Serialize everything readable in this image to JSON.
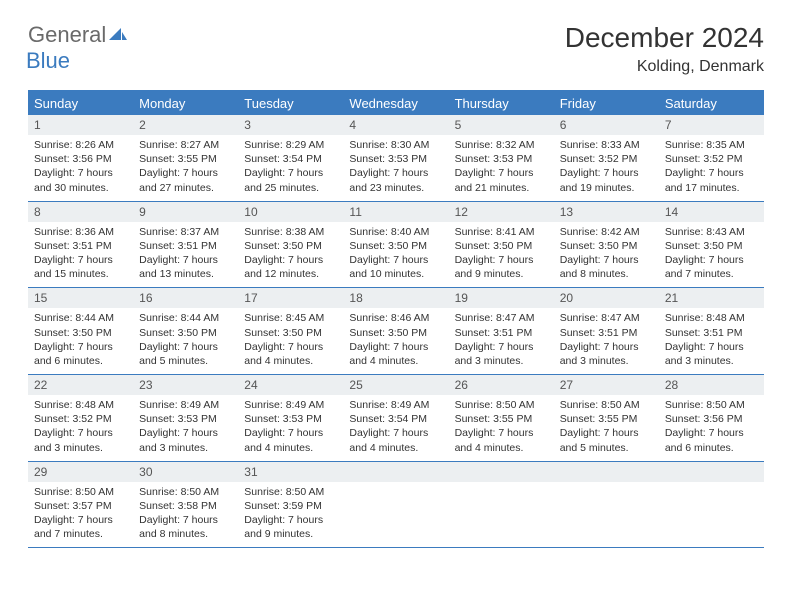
{
  "logo": {
    "text1": "General",
    "text2": "Blue"
  },
  "title": "December 2024",
  "subtitle": "Kolding, Denmark",
  "colors": {
    "accent": "#3b7bbf",
    "header_bg": "#3b7bbf",
    "daynum_bg": "#eceff1",
    "text": "#333333",
    "logo_gray": "#6a6a6a"
  },
  "day_names": [
    "Sunday",
    "Monday",
    "Tuesday",
    "Wednesday",
    "Thursday",
    "Friday",
    "Saturday"
  ],
  "weeks": [
    [
      {
        "n": "1",
        "sunrise": "Sunrise: 8:26 AM",
        "sunset": "Sunset: 3:56 PM",
        "daylight": "Daylight: 7 hours and 30 minutes."
      },
      {
        "n": "2",
        "sunrise": "Sunrise: 8:27 AM",
        "sunset": "Sunset: 3:55 PM",
        "daylight": "Daylight: 7 hours and 27 minutes."
      },
      {
        "n": "3",
        "sunrise": "Sunrise: 8:29 AM",
        "sunset": "Sunset: 3:54 PM",
        "daylight": "Daylight: 7 hours and 25 minutes."
      },
      {
        "n": "4",
        "sunrise": "Sunrise: 8:30 AM",
        "sunset": "Sunset: 3:53 PM",
        "daylight": "Daylight: 7 hours and 23 minutes."
      },
      {
        "n": "5",
        "sunrise": "Sunrise: 8:32 AM",
        "sunset": "Sunset: 3:53 PM",
        "daylight": "Daylight: 7 hours and 21 minutes."
      },
      {
        "n": "6",
        "sunrise": "Sunrise: 8:33 AM",
        "sunset": "Sunset: 3:52 PM",
        "daylight": "Daylight: 7 hours and 19 minutes."
      },
      {
        "n": "7",
        "sunrise": "Sunrise: 8:35 AM",
        "sunset": "Sunset: 3:52 PM",
        "daylight": "Daylight: 7 hours and 17 minutes."
      }
    ],
    [
      {
        "n": "8",
        "sunrise": "Sunrise: 8:36 AM",
        "sunset": "Sunset: 3:51 PM",
        "daylight": "Daylight: 7 hours and 15 minutes."
      },
      {
        "n": "9",
        "sunrise": "Sunrise: 8:37 AM",
        "sunset": "Sunset: 3:51 PM",
        "daylight": "Daylight: 7 hours and 13 minutes."
      },
      {
        "n": "10",
        "sunrise": "Sunrise: 8:38 AM",
        "sunset": "Sunset: 3:50 PM",
        "daylight": "Daylight: 7 hours and 12 minutes."
      },
      {
        "n": "11",
        "sunrise": "Sunrise: 8:40 AM",
        "sunset": "Sunset: 3:50 PM",
        "daylight": "Daylight: 7 hours and 10 minutes."
      },
      {
        "n": "12",
        "sunrise": "Sunrise: 8:41 AM",
        "sunset": "Sunset: 3:50 PM",
        "daylight": "Daylight: 7 hours and 9 minutes."
      },
      {
        "n": "13",
        "sunrise": "Sunrise: 8:42 AM",
        "sunset": "Sunset: 3:50 PM",
        "daylight": "Daylight: 7 hours and 8 minutes."
      },
      {
        "n": "14",
        "sunrise": "Sunrise: 8:43 AM",
        "sunset": "Sunset: 3:50 PM",
        "daylight": "Daylight: 7 hours and 7 minutes."
      }
    ],
    [
      {
        "n": "15",
        "sunrise": "Sunrise: 8:44 AM",
        "sunset": "Sunset: 3:50 PM",
        "daylight": "Daylight: 7 hours and 6 minutes."
      },
      {
        "n": "16",
        "sunrise": "Sunrise: 8:44 AM",
        "sunset": "Sunset: 3:50 PM",
        "daylight": "Daylight: 7 hours and 5 minutes."
      },
      {
        "n": "17",
        "sunrise": "Sunrise: 8:45 AM",
        "sunset": "Sunset: 3:50 PM",
        "daylight": "Daylight: 7 hours and 4 minutes."
      },
      {
        "n": "18",
        "sunrise": "Sunrise: 8:46 AM",
        "sunset": "Sunset: 3:50 PM",
        "daylight": "Daylight: 7 hours and 4 minutes."
      },
      {
        "n": "19",
        "sunrise": "Sunrise: 8:47 AM",
        "sunset": "Sunset: 3:51 PM",
        "daylight": "Daylight: 7 hours and 3 minutes."
      },
      {
        "n": "20",
        "sunrise": "Sunrise: 8:47 AM",
        "sunset": "Sunset: 3:51 PM",
        "daylight": "Daylight: 7 hours and 3 minutes."
      },
      {
        "n": "21",
        "sunrise": "Sunrise: 8:48 AM",
        "sunset": "Sunset: 3:51 PM",
        "daylight": "Daylight: 7 hours and 3 minutes."
      }
    ],
    [
      {
        "n": "22",
        "sunrise": "Sunrise: 8:48 AM",
        "sunset": "Sunset: 3:52 PM",
        "daylight": "Daylight: 7 hours and 3 minutes."
      },
      {
        "n": "23",
        "sunrise": "Sunrise: 8:49 AM",
        "sunset": "Sunset: 3:53 PM",
        "daylight": "Daylight: 7 hours and 3 minutes."
      },
      {
        "n": "24",
        "sunrise": "Sunrise: 8:49 AM",
        "sunset": "Sunset: 3:53 PM",
        "daylight": "Daylight: 7 hours and 4 minutes."
      },
      {
        "n": "25",
        "sunrise": "Sunrise: 8:49 AM",
        "sunset": "Sunset: 3:54 PM",
        "daylight": "Daylight: 7 hours and 4 minutes."
      },
      {
        "n": "26",
        "sunrise": "Sunrise: 8:50 AM",
        "sunset": "Sunset: 3:55 PM",
        "daylight": "Daylight: 7 hours and 4 minutes."
      },
      {
        "n": "27",
        "sunrise": "Sunrise: 8:50 AM",
        "sunset": "Sunset: 3:55 PM",
        "daylight": "Daylight: 7 hours and 5 minutes."
      },
      {
        "n": "28",
        "sunrise": "Sunrise: 8:50 AM",
        "sunset": "Sunset: 3:56 PM",
        "daylight": "Daylight: 7 hours and 6 minutes."
      }
    ],
    [
      {
        "n": "29",
        "sunrise": "Sunrise: 8:50 AM",
        "sunset": "Sunset: 3:57 PM",
        "daylight": "Daylight: 7 hours and 7 minutes."
      },
      {
        "n": "30",
        "sunrise": "Sunrise: 8:50 AM",
        "sunset": "Sunset: 3:58 PM",
        "daylight": "Daylight: 7 hours and 8 minutes."
      },
      {
        "n": "31",
        "sunrise": "Sunrise: 8:50 AM",
        "sunset": "Sunset: 3:59 PM",
        "daylight": "Daylight: 7 hours and 9 minutes."
      },
      {
        "empty": true
      },
      {
        "empty": true
      },
      {
        "empty": true
      },
      {
        "empty": true
      }
    ]
  ]
}
